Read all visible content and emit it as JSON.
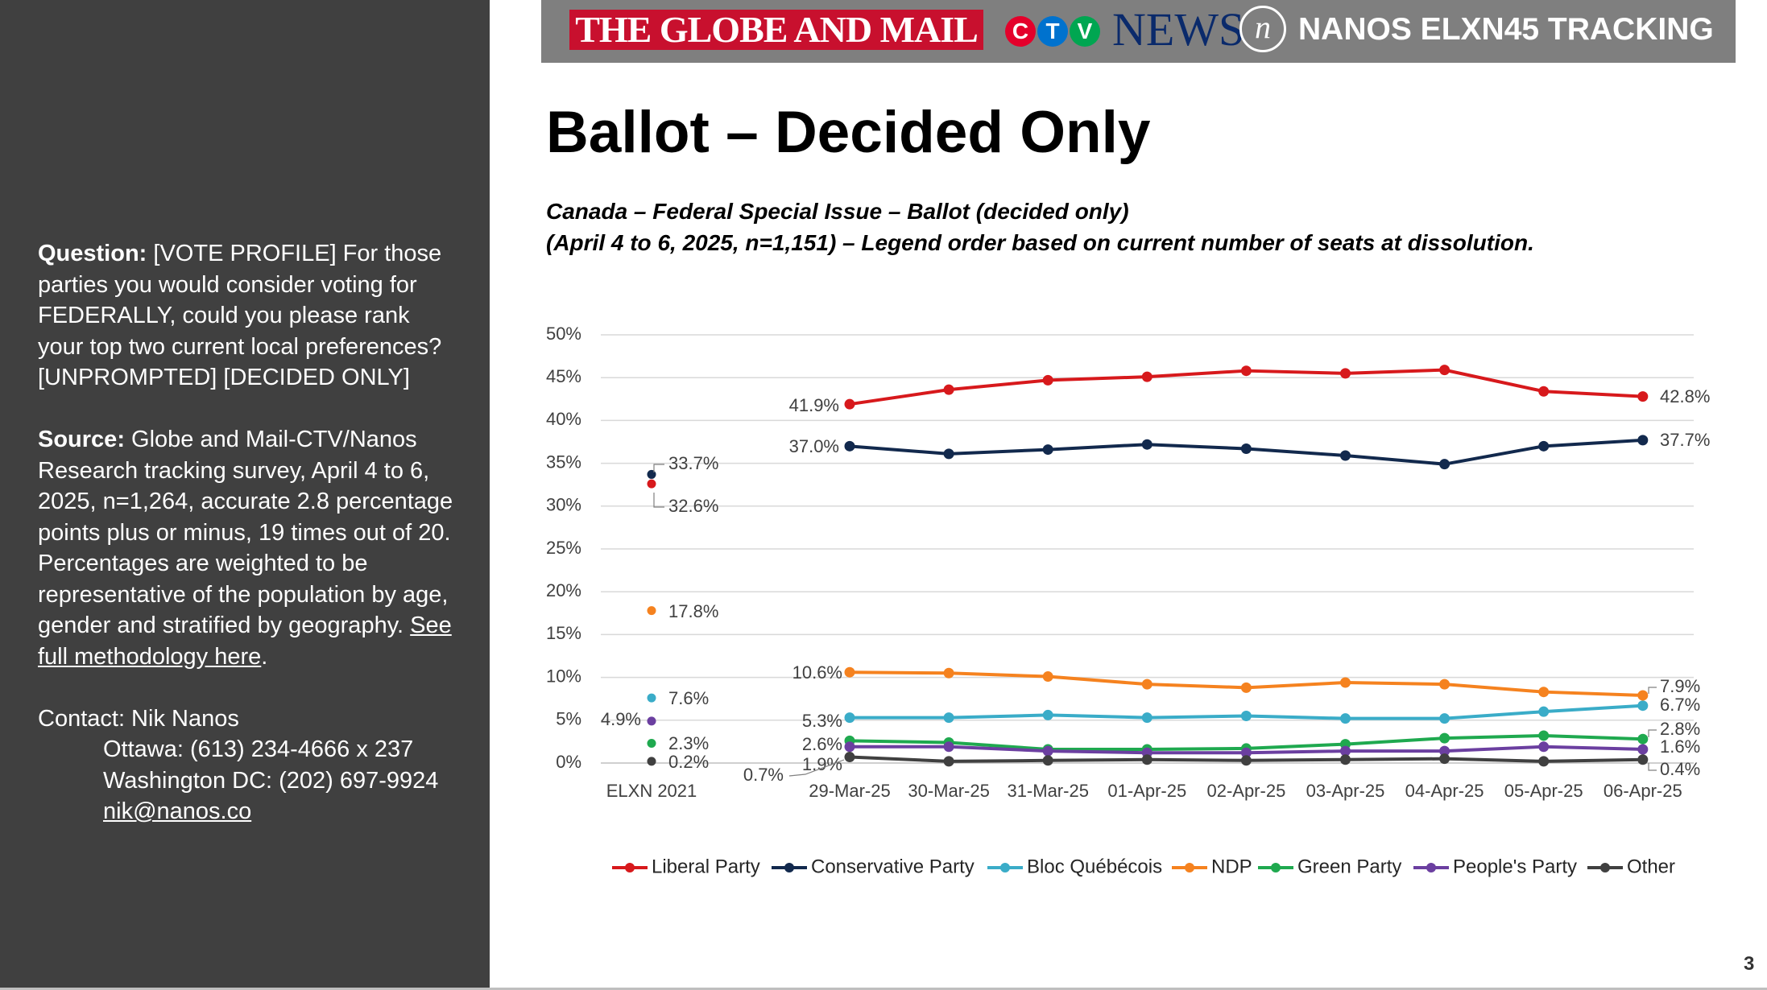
{
  "sidebar": {
    "question_label": "Question:",
    "question_text": "[VOTE PROFILE] For those parties you would consider voting for FEDERALLY, could you please rank your top two current local preferences? [UNPROMPTED] [DECIDED ONLY]",
    "source_label": "Source:",
    "source_text": "Globe and Mail-CTV/Nanos Research tracking survey, April 4 to 6, 2025, n=1,264, accurate 2.8 percentage points plus or minus, 19 times out of 20. Percentages are weighted to be representative of the population by age, gender and stratified by geography.",
    "methodology_link": "See full methodology here",
    "period": ".",
    "contact_line": "Contact: Nik Nanos",
    "ottawa": "Ottawa: (613) 234-4666 x 237",
    "washington": "Washington DC: (202) 697-9924",
    "email": "nik@nanos.co"
  },
  "banner": {
    "globe": "THE GLOBE AND MAIL",
    "ctv_letters": [
      "C",
      "T",
      "V"
    ],
    "news": "NEWS",
    "nanos_mark": "n",
    "tracking": "NANOS ELXN45 TRACKING",
    "colors": {
      "globe": "#c8102e",
      "ctv_c": "#e4002b",
      "ctv_t": "#0072ce",
      "ctv_v": "#00a651"
    }
  },
  "title": "Ballot – Decided Only",
  "subtitle_line1": "Canada – Federal Special Issue – Ballot (decided only)",
  "subtitle_line2": "(April 4 to 6, 2025, n=1,151) – Legend order based on current number of seats at dissolution.",
  "page_number": "3",
  "chart_data": {
    "type": "line",
    "categories": [
      "29-Mar-25",
      "30-Mar-25",
      "31-Mar-25",
      "01-Apr-25",
      "02-Apr-25",
      "03-Apr-25",
      "04-Apr-25",
      "05-Apr-25",
      "06-Apr-25"
    ],
    "baseline_label": "ELXN 2021",
    "y_ticks": [
      "0%",
      "5%",
      "10%",
      "15%",
      "20%",
      "25%",
      "30%",
      "35%",
      "40%",
      "45%",
      "50%"
    ],
    "ylim": [
      0,
      50
    ],
    "grid": true,
    "legend_position": "bottom",
    "series": [
      {
        "name": "Liberal Party",
        "color": "#d7191c",
        "baseline": 32.6,
        "baseline_label": "32.6%",
        "values": [
          41.9,
          43.6,
          44.7,
          45.1,
          45.8,
          45.5,
          45.9,
          43.4,
          42.8
        ],
        "start_label": "41.9%",
        "end_label": "42.8%"
      },
      {
        "name": "Conservative Party",
        "color": "#12294d",
        "baseline": 33.7,
        "baseline_label": "33.7%",
        "values": [
          37.0,
          36.1,
          36.6,
          37.2,
          36.7,
          35.9,
          34.9,
          37.0,
          37.7
        ],
        "start_label": "37.0%",
        "end_label": "37.7%"
      },
      {
        "name": "Bloc Québécois",
        "color": "#3aacc8",
        "baseline": 7.6,
        "baseline_label": "7.6%",
        "values": [
          5.3,
          5.3,
          5.6,
          5.3,
          5.5,
          5.2,
          5.2,
          6.0,
          6.7
        ],
        "start_label": "5.3%",
        "end_label": "6.7%"
      },
      {
        "name": "NDP",
        "color": "#f5821f",
        "baseline": 17.8,
        "baseline_label": "17.8%",
        "values": [
          10.6,
          10.5,
          10.1,
          9.2,
          8.8,
          9.4,
          9.2,
          8.3,
          7.9
        ],
        "start_label": "10.6%",
        "end_label": "7.9%"
      },
      {
        "name": "Green Party",
        "color": "#1fa94f",
        "baseline": 2.3,
        "baseline_label": "2.3%",
        "values": [
          2.6,
          2.4,
          1.6,
          1.6,
          1.7,
          2.2,
          2.9,
          3.2,
          2.8
        ],
        "start_label": "2.6%",
        "end_label": "2.8%"
      },
      {
        "name": "People's Party",
        "color": "#6b3fa0",
        "baseline": 4.9,
        "baseline_label": "4.9%",
        "values": [
          1.9,
          1.9,
          1.4,
          1.2,
          1.2,
          1.4,
          1.4,
          1.9,
          1.6
        ],
        "start_label": "1.9%",
        "end_label": "1.6%"
      },
      {
        "name": "Other",
        "color": "#404040",
        "baseline": 0.2,
        "baseline_label": "0.2%",
        "values": [
          0.7,
          0.2,
          0.3,
          0.4,
          0.3,
          0.4,
          0.5,
          0.2,
          0.4
        ],
        "start_label": "0.7%",
        "end_label": "0.4%"
      }
    ]
  }
}
